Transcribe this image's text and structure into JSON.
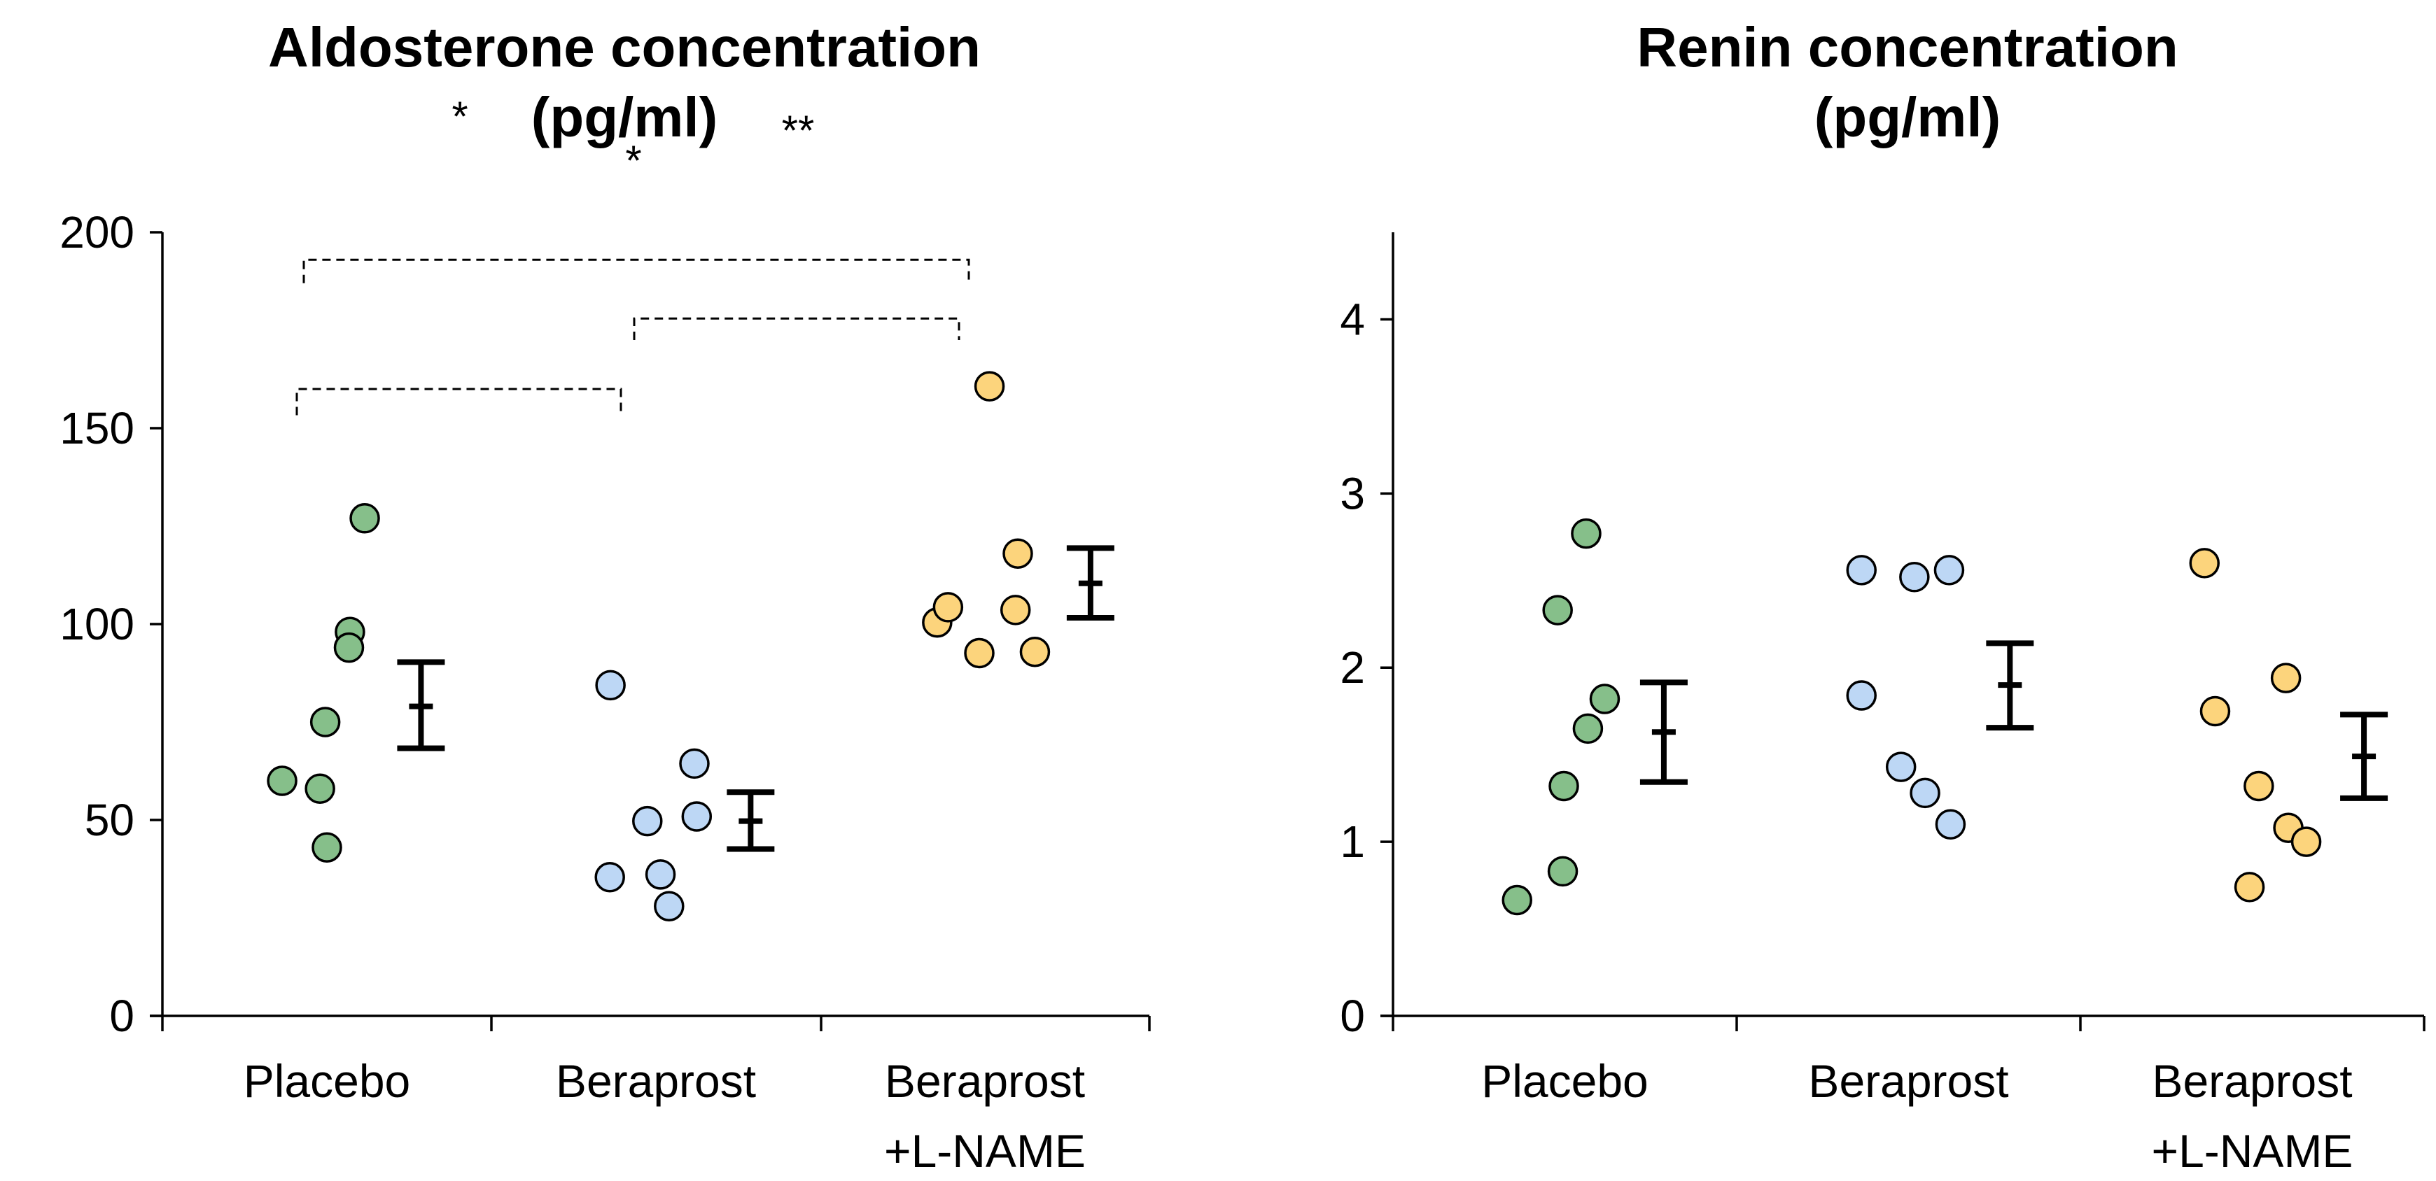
{
  "chart_data": [
    {
      "type": "scatter",
      "title": "Aldosterone concentration",
      "title_line2": "(pg/ml)",
      "ylim": [
        0,
        200
      ],
      "yticks": [
        "0",
        "50",
        "100",
        "150",
        "200"
      ],
      "grid": false,
      "categories": [
        "Placebo",
        "Beraprost",
        "Beraprost +L-NAME"
      ],
      "category_labels": [
        [
          "Placebo"
        ],
        [
          "Beraprost"
        ],
        [
          "Beraprost",
          "+L-NAME"
        ]
      ],
      "colors": [
        "#86bf8a",
        "#bdd7f5",
        "#fcd47c"
      ],
      "groups": [
        {
          "values": [
            127,
            98,
            94,
            75,
            60,
            58,
            43
          ],
          "mean": 79,
          "err_high": 90.3,
          "err_low": 68.3
        },
        {
          "values": [
            84.4,
            64.4,
            49.7,
            50.9,
            35.4,
            36.1,
            28
          ],
          "mean": 49.7,
          "err_high": 57.1,
          "err_low": 42.6
        },
        {
          "values": [
            160.7,
            118,
            100.4,
            104.3,
            103.6,
            92.6,
            92.9
          ],
          "mean": 110.4,
          "err_high": 119.4,
          "err_low": 101.6
        }
      ],
      "significance": [
        {
          "from": "Placebo",
          "to": "Beraprost +L-NAME",
          "label": "*"
        },
        {
          "from": "Beraprost",
          "to": "Beraprost +L-NAME",
          "label": "**"
        },
        {
          "from": "Placebo",
          "to": "Beraprost",
          "label": "*"
        }
      ]
    },
    {
      "type": "scatter",
      "title": "Renin concentration",
      "title_line2": "(pg/ml)",
      "ylim": [
        0,
        4.5
      ],
      "yticks": [
        "0",
        "1",
        "2",
        "3",
        "4"
      ],
      "grid": false,
      "categories": [
        "Placebo",
        "Beraprost",
        "Beraprost +L-NAME"
      ],
      "category_labels": [
        [
          "Placebo"
        ],
        [
          "Beraprost"
        ],
        [
          "Beraprost",
          "+L-NAME"
        ]
      ],
      "colors": [
        "#86bf8a",
        "#bdd7f5",
        "#fcd47c"
      ],
      "groups": [
        {
          "values": [
            2.77,
            2.33,
            1.82,
            1.65,
            1.32,
            0.83,
            0.665
          ],
          "mean": 1.63,
          "err_high": 1.915,
          "err_low": 1.343
        },
        {
          "values": [
            2.56,
            2.52,
            2.56,
            1.84,
            1.43,
            1.28,
            1.1
          ],
          "mean": 1.9,
          "err_high": 2.14,
          "err_low": 1.655
        },
        {
          "values": [
            2.6,
            1.75,
            1.94,
            1.32,
            1.08,
            1.0,
            0.74
          ],
          "mean": 1.49,
          "err_high": 1.73,
          "err_low": 1.25
        }
      ],
      "significance": []
    }
  ]
}
